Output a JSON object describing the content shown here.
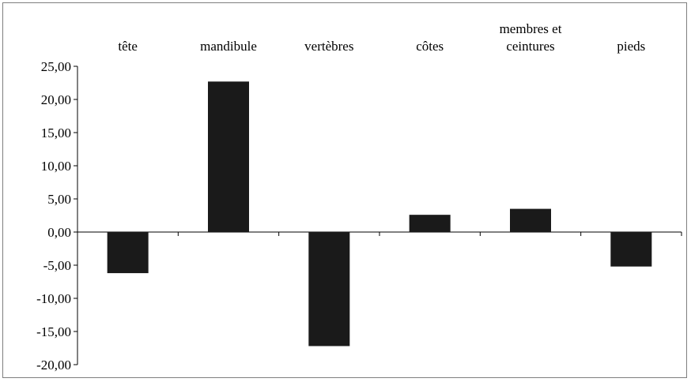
{
  "chart_data": {
    "type": "bar",
    "categories": [
      [
        "tête"
      ],
      [
        "mandibule"
      ],
      [
        "vertèbres"
      ],
      [
        "côtes"
      ],
      [
        "membres et",
        "ceintures"
      ],
      [
        "pieds"
      ]
    ],
    "values": [
      -6.2,
      22.7,
      -17.2,
      2.6,
      3.5,
      -5.2
    ],
    "ylim": [
      -20,
      25
    ],
    "yticks": [
      "25,00",
      "20,00",
      "15,00",
      "10,00",
      "5,00",
      "0,00",
      "-5,00",
      "-10,00",
      "-15,00",
      "-20,00"
    ],
    "ytick_values": [
      25,
      20,
      15,
      10,
      5,
      0,
      -5,
      -10,
      -15,
      -20
    ],
    "grid": false,
    "bar_color": "#1a1a1a",
    "category_label_position": "top"
  }
}
